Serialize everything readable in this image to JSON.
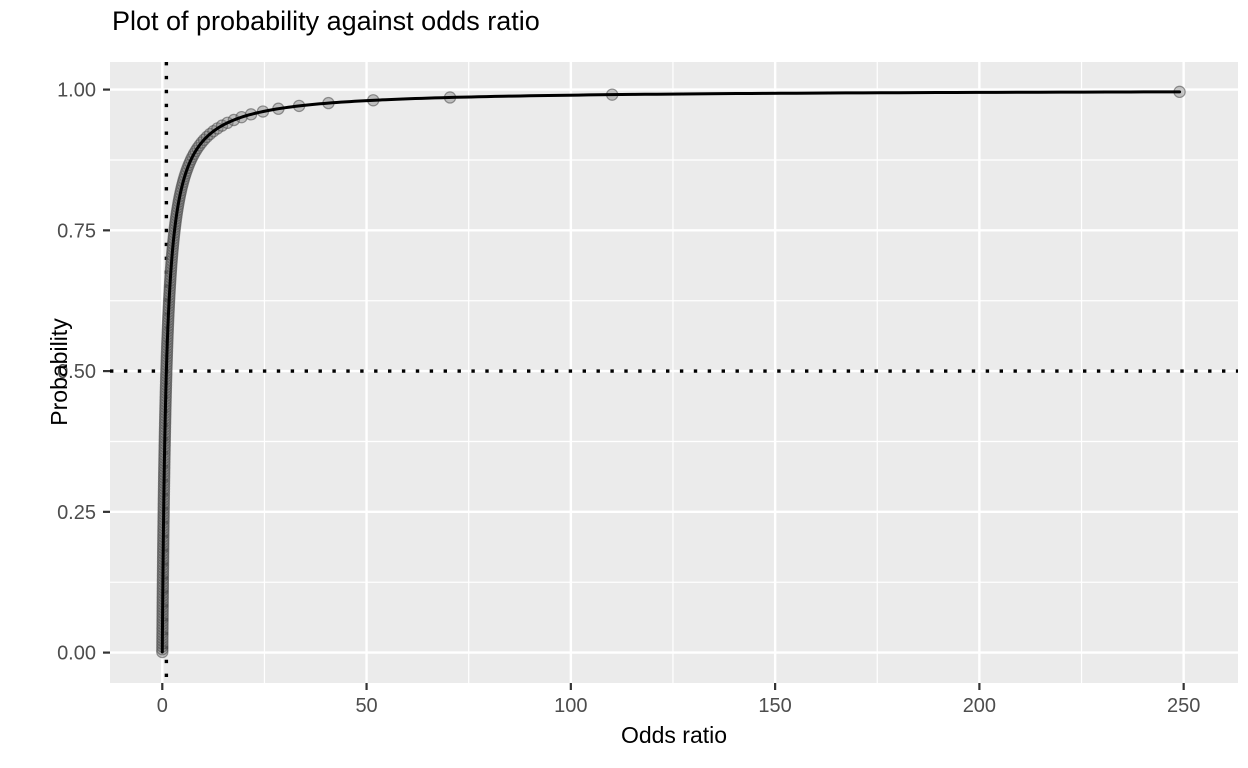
{
  "page": {
    "background_color": "#ffffff"
  },
  "chart": {
    "title": "Plot of probability against odds ratio",
    "x_axis_title": "Odds ratio",
    "y_axis_title": "Probability",
    "colors": {
      "panel_background": "#EBEBEB",
      "grid_line": "#FFFFFF",
      "curve": "#000000",
      "reference_line": "#000000",
      "point_fill": "#787878",
      "point_stroke": "#4a4a4a",
      "tick_mark": "#333333",
      "tick_label": "#4d4d4d",
      "title_text": "#000000"
    }
  },
  "chart_data": {
    "type": "scatter",
    "title": "Plot of probability against odds ratio",
    "xlabel": "Odds ratio",
    "ylabel": "Probability",
    "xlim": [
      -12.8,
      263.3
    ],
    "ylim": [
      -0.054,
      1.049
    ],
    "x_ticks": [
      0,
      50,
      100,
      150,
      200,
      250
    ],
    "x_minor_ticks": [
      25,
      75,
      125,
      175,
      225
    ],
    "y_ticks": [
      0.0,
      0.25,
      0.5,
      0.75,
      1.0
    ],
    "y_tick_labels": [
      "0.00",
      "0.25",
      "0.50",
      "0.75",
      "1.00"
    ],
    "y_minor_ticks": [
      0.125,
      0.375,
      0.625,
      0.875
    ],
    "grid": true,
    "legend": false,
    "curve": {
      "formula": "probability = odds / (1 + odds)",
      "odds_min": 0.001,
      "odds_max": 249.0
    },
    "points_generator": {
      "description": "probability sequence; odds = probability / (1 - probability)",
      "probability_from": 0.001,
      "probability_to": 0.996,
      "probability_step": 0.005
    },
    "visible_discrete_points": [
      {
        "odds": 19.4,
        "probability": 0.951
      },
      {
        "odds": 21.7,
        "probability": 0.956
      },
      {
        "odds": 24.6,
        "probability": 0.961
      },
      {
        "odds": 28.4,
        "probability": 0.966
      },
      {
        "odds": 33.5,
        "probability": 0.971
      },
      {
        "odds": 40.7,
        "probability": 0.976
      },
      {
        "odds": 51.6,
        "probability": 0.981
      },
      {
        "odds": 70.4,
        "probability": 0.986
      },
      {
        "odds": 110.1,
        "probability": 0.991
      },
      {
        "odds": 249.0,
        "probability": 0.996
      }
    ],
    "reference_lines": [
      {
        "orientation": "vertical",
        "x": 1.0,
        "style": "dotted"
      },
      {
        "orientation": "horizontal",
        "y": 0.5,
        "style": "dotted"
      }
    ]
  }
}
